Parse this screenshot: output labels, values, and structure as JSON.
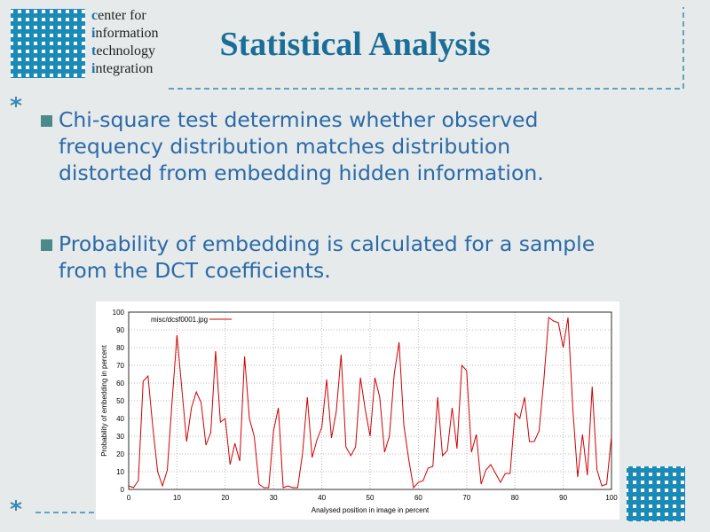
{
  "header": {
    "logo_lines": [
      "center for",
      "information",
      "technology",
      "integration"
    ],
    "title": "Statistical Analysis"
  },
  "bullets": [
    [
      "Chi-square test determines whether observed",
      "frequency distribution matches distribution",
      "distorted from embedding hidden information."
    ],
    [
      "Probability of embedding is calculated for a sample",
      "from the DCT coefficients."
    ]
  ],
  "chart": {
    "type": "line",
    "xlabel": "Analysed position in image in percent",
    "ylabel": "Probability of embedding in percent",
    "legend": "misc/dcsf0001.jpg",
    "color": "#d00000",
    "grid": true,
    "x": [
      0,
      1,
      2,
      3,
      4,
      5,
      6,
      7,
      8,
      9,
      10,
      11,
      12,
      13,
      14,
      15,
      16,
      17,
      18,
      19,
      20,
      21,
      22,
      23,
      24,
      25,
      26,
      27,
      28,
      29,
      30,
      31,
      32,
      33,
      34,
      35,
      36,
      37,
      38,
      39,
      40,
      41,
      42,
      43,
      44,
      45,
      46,
      47,
      48,
      49,
      50,
      51,
      52,
      53,
      54,
      55,
      56,
      57,
      58,
      59,
      60,
      61,
      62,
      63,
      64,
      65,
      66,
      67,
      68,
      69,
      70,
      71,
      72,
      73,
      74,
      75,
      76,
      77,
      78,
      79,
      80,
      81,
      82,
      83,
      84,
      85,
      86,
      87,
      88,
      89,
      90,
      91,
      92,
      93,
      94,
      95,
      96,
      97,
      98,
      99,
      100
    ],
    "values": [
      2,
      1,
      5,
      61,
      64,
      35,
      10,
      2,
      11,
      50,
      87,
      57,
      27,
      46,
      55,
      49,
      25,
      32,
      78,
      38,
      40,
      14,
      26,
      16,
      75,
      40,
      30,
      3,
      1,
      1,
      33,
      46,
      1,
      2,
      1,
      1,
      20,
      52,
      18,
      28,
      35,
      62,
      29,
      44,
      76,
      24,
      19,
      24,
      63,
      45,
      30,
      63,
      52,
      21,
      30,
      65,
      83,
      36,
      17,
      1,
      4,
      5,
      12,
      13,
      52,
      19,
      22,
      46,
      23,
      70,
      67,
      21,
      31,
      3,
      11,
      14,
      9,
      4,
      9,
      9,
      43,
      40,
      52,
      27,
      27,
      33,
      62,
      97,
      95,
      94,
      80,
      97,
      45,
      7,
      31,
      8,
      58,
      11,
      2,
      3,
      30
    ],
    "xlim": [
      0,
      100
    ],
    "ylim": [
      0,
      100
    ],
    "xticks": [
      0,
      10,
      20,
      30,
      40,
      50,
      60,
      70,
      80,
      90,
      100
    ],
    "yticks": [
      0,
      10,
      20,
      30,
      40,
      50,
      60,
      70,
      80,
      90,
      100
    ]
  }
}
